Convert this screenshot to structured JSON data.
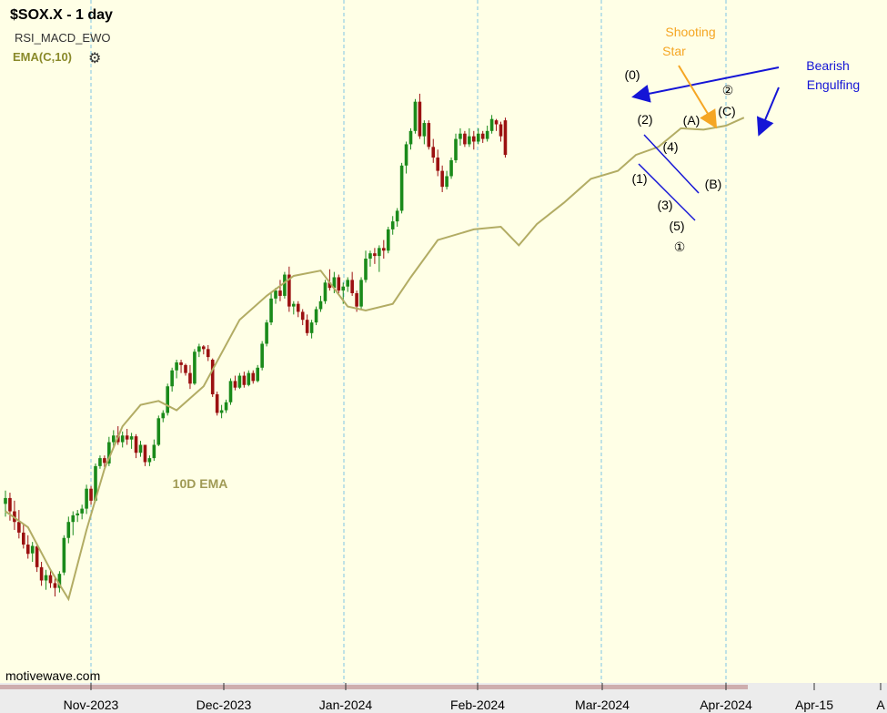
{
  "header": {
    "title": "$SOX.X - 1 day",
    "indicator_1": "RSI_MACD_EWO",
    "indicator_2": "EMA(C,10)",
    "settings_icon": "gear-icon"
  },
  "watermark": "motivewave.com",
  "colors": {
    "background": "#ffffe6",
    "up_candle": "#1a8a1a",
    "down_candle": "#9b1111",
    "ema": "#b2ac64",
    "gridline": "#7fc4e4",
    "blue_annotation": "#1515d6",
    "orange_annotation": "#f5a623"
  },
  "chart_data": {
    "type": "candlestick",
    "title": "$SOX.X - 1 day",
    "x_tick_labels": [
      "Nov-2023",
      "Dec-2023",
      "Jan-2024",
      "Feb-2024",
      "Mar-2024",
      "Apr-2024",
      "Apr-15",
      "A"
    ],
    "grid": "vertical dashed lines at month starts",
    "series": [
      {
        "name": "EMA(C,10)",
        "label": "10D EMA",
        "points": [
          [
            0,
            3520
          ],
          [
            5,
            3460
          ],
          [
            10,
            3300
          ],
          [
            14,
            3190
          ],
          [
            18,
            3450
          ],
          [
            22,
            3680
          ],
          [
            26,
            3840
          ],
          [
            30,
            3920
          ],
          [
            34,
            3935
          ],
          [
            38,
            3900
          ],
          [
            44,
            3990
          ],
          [
            52,
            4240
          ],
          [
            58,
            4330
          ],
          [
            64,
            4405
          ],
          [
            70,
            4425
          ],
          [
            72,
            4380
          ],
          [
            76,
            4290
          ],
          [
            80,
            4275
          ],
          [
            86,
            4300
          ],
          [
            90,
            4400
          ],
          [
            96,
            4540
          ],
          [
            104,
            4580
          ],
          [
            110,
            4590
          ],
          [
            114,
            4520
          ],
          [
            118,
            4600
          ],
          [
            124,
            4680
          ],
          [
            130,
            4770
          ],
          [
            136,
            4800
          ],
          [
            140,
            4860
          ],
          [
            145,
            4890
          ],
          [
            150,
            4960
          ],
          [
            155,
            4955
          ],
          [
            160,
            4970
          ],
          [
            164,
            5000
          ]
        ]
      }
    ],
    "candles": [
      [
        3548,
        3598,
        3500,
        3570
      ],
      [
        3570,
        3590,
        3485,
        3520
      ],
      [
        3520,
        3560,
        3450,
        3480
      ],
      [
        3480,
        3525,
        3418,
        3440
      ],
      [
        3440,
        3470,
        3380,
        3395
      ],
      [
        3395,
        3430,
        3342,
        3360
      ],
      [
        3362,
        3405,
        3330,
        3390
      ],
      [
        3388,
        3400,
        3292,
        3310
      ],
      [
        3310,
        3330,
        3240,
        3260
      ],
      [
        3260,
        3300,
        3225,
        3280
      ],
      [
        3280,
        3300,
        3232,
        3250
      ],
      [
        3250,
        3270,
        3200,
        3232
      ],
      [
        3232,
        3295,
        3215,
        3285
      ],
      [
        3290,
        3430,
        3280,
        3420
      ],
      [
        3420,
        3500,
        3400,
        3480
      ],
      [
        3480,
        3520,
        3430,
        3505
      ],
      [
        3505,
        3525,
        3480,
        3512
      ],
      [
        3512,
        3545,
        3490,
        3530
      ],
      [
        3530,
        3620,
        3510,
        3605
      ],
      [
        3605,
        3615,
        3545,
        3560
      ],
      [
        3560,
        3700,
        3555,
        3690
      ],
      [
        3690,
        3730,
        3680,
        3720
      ],
      [
        3720,
        3730,
        3685,
        3702
      ],
      [
        3700,
        3800,
        3690,
        3780
      ],
      [
        3780,
        3825,
        3760,
        3805
      ],
      [
        3805,
        3840,
        3770,
        3780
      ],
      [
        3780,
        3820,
        3760,
        3805
      ],
      [
        3805,
        3830,
        3770,
        3790
      ],
      [
        3790,
        3815,
        3755,
        3802
      ],
      [
        3802,
        3810,
        3720,
        3740
      ],
      [
        3740,
        3785,
        3725,
        3770
      ],
      [
        3770,
        3770,
        3690,
        3705
      ],
      [
        3705,
        3730,
        3690,
        3720
      ],
      [
        3720,
        3790,
        3710,
        3770
      ],
      [
        3770,
        3880,
        3765,
        3870
      ],
      [
        3870,
        3900,
        3855,
        3890
      ],
      [
        3890,
        4000,
        3880,
        3990
      ],
      [
        3990,
        4060,
        3970,
        4050
      ],
      [
        4050,
        4090,
        4020,
        4080
      ],
      [
        4080,
        4090,
        4040,
        4070
      ],
      [
        4070,
        4075,
        4030,
        4040
      ],
      [
        4040,
        4070,
        3980,
        4000
      ],
      [
        4000,
        4130,
        3995,
        4120
      ],
      [
        4120,
        4150,
        4100,
        4140
      ],
      [
        4140,
        4145,
        4110,
        4130
      ],
      [
        4130,
        4145,
        4085,
        4100
      ],
      [
        4090,
        4095,
        3950,
        3960
      ],
      [
        3960,
        3970,
        3880,
        3890
      ],
      [
        3890,
        3920,
        3870,
        3900
      ],
      [
        3900,
        3940,
        3890,
        3930
      ],
      [
        3930,
        4020,
        3920,
        4010
      ],
      [
        4010,
        4030,
        3975,
        3985
      ],
      [
        3985,
        4040,
        3980,
        4030
      ],
      [
        4030,
        4045,
        3985,
        3995
      ],
      [
        3995,
        4050,
        3990,
        4040
      ],
      [
        4040,
        4050,
        4000,
        4010
      ],
      [
        4010,
        4070,
        4005,
        4060
      ],
      [
        4060,
        4160,
        4050,
        4150
      ],
      [
        4150,
        4240,
        4140,
        4230
      ],
      [
        4230,
        4340,
        4220,
        4320
      ],
      [
        4320,
        4360,
        4300,
        4350
      ],
      [
        4350,
        4390,
        4310,
        4330
      ],
      [
        4330,
        4420,
        4320,
        4410
      ],
      [
        4410,
        4440,
        4270,
        4290
      ],
      [
        4290,
        4310,
        4260,
        4300
      ],
      [
        4300,
        4310,
        4250,
        4270
      ],
      [
        4270,
        4280,
        4220,
        4240
      ],
      [
        4240,
        4260,
        4180,
        4190
      ],
      [
        4190,
        4240,
        4170,
        4230
      ],
      [
        4230,
        4290,
        4220,
        4280
      ],
      [
        4280,
        4330,
        4270,
        4310
      ],
      [
        4310,
        4390,
        4300,
        4380
      ],
      [
        4380,
        4430,
        4350,
        4360
      ],
      [
        4360,
        4420,
        4340,
        4400
      ],
      [
        4400,
        4410,
        4340,
        4350
      ],
      [
        4350,
        4380,
        4300,
        4365
      ],
      [
        4365,
        4400,
        4345,
        4390
      ],
      [
        4390,
        4420,
        4330,
        4340
      ],
      [
        4340,
        4350,
        4270,
        4290
      ],
      [
        4290,
        4400,
        4280,
        4390
      ],
      [
        4390,
        4500,
        4380,
        4470
      ],
      [
        4470,
        4500,
        4440,
        4490
      ],
      [
        4490,
        4510,
        4450,
        4480
      ],
      [
        4480,
        4520,
        4420,
        4510
      ],
      [
        4510,
        4540,
        4470,
        4500
      ],
      [
        4500,
        4590,
        4490,
        4580
      ],
      [
        4580,
        4630,
        4560,
        4610
      ],
      [
        4610,
        4660,
        4590,
        4650
      ],
      [
        4650,
        4830,
        4640,
        4820
      ],
      [
        4820,
        4910,
        4790,
        4900
      ],
      [
        4900,
        4960,
        4880,
        4950
      ],
      [
        4950,
        5070,
        4940,
        5060
      ],
      [
        5060,
        5090,
        4920,
        4930
      ],
      [
        4930,
        4990,
        4900,
        4980
      ],
      [
        4980,
        4990,
        4880,
        4890
      ],
      [
        4890,
        4920,
        4830,
        4850
      ],
      [
        4850,
        4880,
        4780,
        4800
      ],
      [
        4800,
        4820,
        4720,
        4740
      ],
      [
        4740,
        4800,
        4730,
        4780
      ],
      [
        4780,
        4850,
        4770,
        4840
      ],
      [
        4840,
        4940,
        4830,
        4920
      ],
      [
        4920,
        4960,
        4895,
        4940
      ],
      [
        4940,
        4950,
        4890,
        4900
      ],
      [
        4900,
        4960,
        4890,
        4930
      ],
      [
        4930,
        4950,
        4880,
        4910
      ],
      [
        4910,
        4960,
        4900,
        4940
      ],
      [
        4940,
        4950,
        4905,
        4920
      ],
      [
        4920,
        4970,
        4910,
        4950
      ],
      [
        4950,
        5010,
        4940,
        4995
      ],
      [
        4990,
        4995,
        4950,
        4975
      ],
      [
        4975,
        4985,
        4910,
        4930
      ],
      [
        4990,
        5000,
        4850,
        4860
      ]
    ],
    "annotations": [
      "(0)",
      "(2)",
      "(4)",
      "(1)",
      "(3)",
      "(5)",
      "①",
      "②",
      "(A)",
      "(B)",
      "(C)",
      "Shooting Star",
      "Bearish Engulfing",
      "10D EMA"
    ]
  },
  "annotations": {
    "wave_0": "(0)",
    "wave_2": "(2)",
    "wave_4": "(4)",
    "wave_1": "(1)",
    "wave_3": "(3)",
    "wave_5": "(5)",
    "circle_1": "①",
    "circle_2": "②",
    "wave_a": "(A)",
    "wave_b": "(B)",
    "wave_c": "(C)",
    "shooting_star_line1": "Shooting",
    "shooting_star_line2": "Star",
    "bearish_line1": "Bearish",
    "bearish_line2": "Engulfing",
    "ema_label": "10D EMA"
  }
}
